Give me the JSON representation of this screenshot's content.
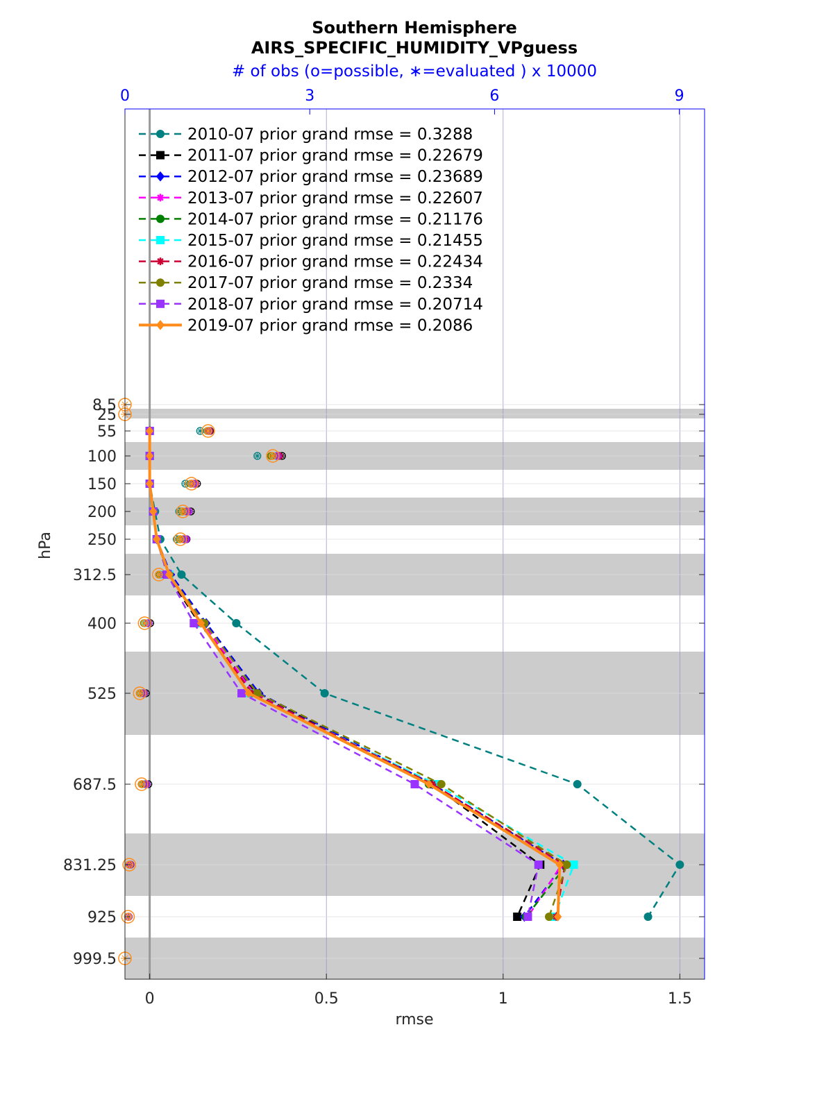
{
  "chart_data": {
    "type": "line",
    "title": "Southern Hemisphere",
    "subtitle": "AIRS_SPECIFIC_HUMIDITY_VPguess",
    "top_axis_label": "# of obs (o=possible, ∗=evaluated ) x 10000",
    "top_ticks": [
      "0",
      "3",
      "6",
      "9"
    ],
    "top_range": [
      0,
      9.41
    ],
    "xlabel": "rmse",
    "ylabel": "hPa",
    "xlim": [
      -0.07,
      1.57
    ],
    "x_ticks": [
      "0",
      "0.5",
      "1",
      "1.5"
    ],
    "x_tick_values": [
      0,
      0.5,
      1,
      1.5
    ],
    "y_levels": [
      "8.5",
      "25",
      "55",
      "100",
      "150",
      "200",
      "250",
      "312.5",
      "400",
      "525",
      "687.5",
      "831.25",
      "925",
      "999.5"
    ],
    "y_level_values": [
      8.5,
      25,
      55,
      100,
      150,
      200,
      250,
      312.5,
      400,
      525,
      687.5,
      831.25,
      925,
      999.5
    ],
    "grid": true,
    "legend_position": "top-left",
    "series": [
      {
        "name": "2010-07 prior grand rmse = 0.3288",
        "color": "#008080",
        "marker": "circle",
        "dash": "dashed",
        "values": [
          null,
          null,
          0.0,
          0.0,
          0.0,
          0.015,
          0.03,
          0.09,
          0.245,
          0.495,
          1.21,
          1.5,
          1.41,
          null
        ]
      },
      {
        "name": "2011-07 prior grand rmse = 0.22679",
        "color": "#000000",
        "marker": "square",
        "dash": "dashed",
        "values": [
          null,
          null,
          0.0,
          0.0,
          0.0,
          0.01,
          0.02,
          0.05,
          0.14,
          0.3,
          0.8,
          1.105,
          1.04,
          null
        ]
      },
      {
        "name": "2012-07 prior grand rmse = 0.23689",
        "color": "#0000ff",
        "marker": "diamond",
        "dash": "dashed",
        "values": [
          null,
          null,
          0.0,
          0.0,
          0.0,
          0.01,
          0.02,
          0.06,
          0.16,
          0.31,
          0.8,
          1.17,
          1.06,
          null
        ]
      },
      {
        "name": "2013-07 prior grand rmse = 0.22607",
        "color": "#ff00ff",
        "marker": "star",
        "dash": "dashed",
        "values": [
          null,
          null,
          0.0,
          0.0,
          0.0,
          0.01,
          0.02,
          0.055,
          0.15,
          0.295,
          0.79,
          1.165,
          1.07,
          null
        ]
      },
      {
        "name": "2014-07 prior grand rmse = 0.21176",
        "color": "#008000",
        "marker": "circle",
        "dash": "dashed",
        "values": [
          null,
          null,
          0.0,
          0.0,
          0.0,
          0.01,
          0.02,
          0.055,
          0.145,
          0.29,
          0.79,
          1.18,
          1.065,
          null
        ]
      },
      {
        "name": "2015-07 prior grand rmse = 0.21455",
        "color": "#00ffff",
        "marker": "square",
        "dash": "dashed",
        "values": [
          null,
          null,
          0.0,
          0.0,
          0.0,
          0.01,
          0.02,
          0.055,
          0.145,
          0.285,
          0.81,
          1.2,
          1.145,
          null
        ]
      },
      {
        "name": "2016-07 prior grand rmse = 0.22434",
        "color": "#cc0033",
        "marker": "star",
        "dash": "dashed",
        "values": [
          null,
          null,
          0.0,
          0.0,
          0.0,
          0.01,
          0.02,
          0.055,
          0.145,
          0.29,
          0.8,
          1.175,
          1.15,
          null
        ]
      },
      {
        "name": "2017-07 prior grand rmse = 0.2334",
        "color": "#808000",
        "marker": "circle",
        "dash": "dashed",
        "values": [
          null,
          null,
          0.0,
          0.0,
          0.0,
          0.01,
          0.02,
          0.055,
          0.155,
          0.305,
          0.825,
          1.18,
          1.13,
          null
        ]
      },
      {
        "name": "2018-07 prior grand rmse = 0.20714",
        "color": "#9933ff",
        "marker": "square",
        "dash": "dashed",
        "values": [
          null,
          null,
          0.0,
          0.0,
          0.0,
          0.01,
          0.02,
          0.05,
          0.125,
          0.26,
          0.75,
          1.1,
          1.07,
          null
        ]
      },
      {
        "name": "2019-07 prior grand rmse = 0.2086",
        "color": "#ff8c1a",
        "marker": "diamond",
        "dash": "solid",
        "values": [
          null,
          null,
          0.0,
          0.0,
          0.0,
          0.01,
          0.02,
          0.055,
          0.145,
          0.28,
          0.79,
          1.16,
          1.155,
          null
        ]
      }
    ],
    "obs_possible_x10000": [
      0.0,
      0.0,
      1.35,
      2.4,
      1.08,
      0.94,
      0.9,
      0.55,
      0.32,
      0.24,
      0.27,
      0.07,
      0.05,
      0.0
    ],
    "obs_evaluated": [
      [
        null,
        null,
        1.22,
        2.15,
        0.98,
        0.88,
        0.84,
        0.57,
        0.32,
        0.24,
        0.28,
        0.07,
        0.05,
        null
      ],
      [
        null,
        null,
        1.38,
        2.55,
        1.17,
        1.07,
        1.0,
        0.7,
        0.41,
        0.34,
        0.38,
        0.09,
        0.06,
        null
      ],
      [
        null,
        null,
        1.36,
        2.45,
        1.12,
        1.01,
        0.97,
        0.63,
        0.37,
        0.29,
        0.33,
        0.08,
        0.06,
        null
      ],
      [
        null,
        null,
        1.37,
        2.49,
        1.14,
        1.03,
        0.99,
        0.66,
        0.38,
        0.31,
        0.35,
        0.085,
        0.06,
        null
      ],
      [
        null,
        null,
        1.34,
        2.38,
        1.07,
        0.93,
        0.89,
        0.55,
        0.31,
        0.25,
        0.28,
        0.07,
        0.05,
        null
      ],
      [
        null,
        null,
        1.35,
        2.43,
        1.1,
        0.96,
        0.92,
        0.59,
        0.34,
        0.27,
        0.3,
        0.075,
        0.055,
        null
      ],
      [
        null,
        null,
        1.37,
        2.5,
        1.13,
        1.0,
        0.96,
        0.66,
        0.38,
        0.3,
        0.34,
        0.08,
        0.06,
        null
      ],
      [
        null,
        null,
        1.34,
        2.37,
        1.07,
        0.93,
        0.89,
        0.56,
        0.32,
        0.25,
        0.28,
        0.07,
        0.05,
        null
      ],
      [
        null,
        null,
        1.36,
        2.47,
        1.11,
        1.02,
        0.98,
        0.64,
        0.38,
        0.31,
        0.35,
        0.08,
        0.06,
        null
      ],
      [
        null,
        null,
        1.35,
        2.4,
        1.08,
        0.94,
        0.9,
        0.55,
        0.32,
        0.24,
        0.27,
        0.07,
        0.05,
        null
      ]
    ]
  }
}
